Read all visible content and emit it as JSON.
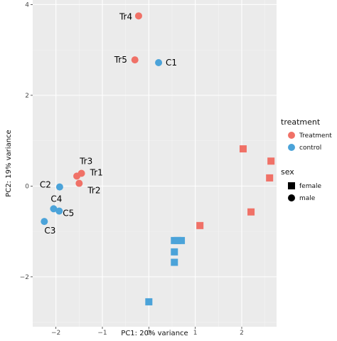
{
  "chart_data": {
    "type": "scatter",
    "title": "",
    "xlabel": "PC1: 20% variance",
    "ylabel": "PC2: 19% variance",
    "xlim": [
      -2.5,
      2.75
    ],
    "ylim": [
      -3.1,
      4.1
    ],
    "x_ticks": [
      -2,
      -1,
      0,
      1,
      2
    ],
    "y_ticks": [
      -2,
      0,
      2,
      4
    ],
    "x_tick_labels": [
      "−2",
      "−1",
      "0",
      "1",
      "2"
    ],
    "y_tick_labels": [
      "−2",
      "0",
      "2",
      "4"
    ],
    "grid": true,
    "colors": {
      "Treatment": "#f07167",
      "control": "#4ba3d9"
    },
    "points": [
      {
        "label": "Tr4",
        "x": -0.22,
        "y": 3.75,
        "treatment": "Treatment",
        "sex": "male"
      },
      {
        "label": "Tr5",
        "x": -0.3,
        "y": 2.78,
        "treatment": "Treatment",
        "sex": "male"
      },
      {
        "label": "C1",
        "x": 0.21,
        "y": 2.72,
        "treatment": "control",
        "sex": "male"
      },
      {
        "label": "Tr3",
        "x": -1.55,
        "y": 0.22,
        "treatment": "Treatment",
        "sex": "male"
      },
      {
        "label": "Tr1",
        "x": -1.45,
        "y": 0.28,
        "treatment": "Treatment",
        "sex": "male"
      },
      {
        "label": "Tr2",
        "x": -1.5,
        "y": 0.06,
        "treatment": "Treatment",
        "sex": "male"
      },
      {
        "label": "C2",
        "x": -1.92,
        "y": -0.02,
        "treatment": "control",
        "sex": "male"
      },
      {
        "label": "C4",
        "x": -2.05,
        "y": -0.5,
        "treatment": "control",
        "sex": "male"
      },
      {
        "label": "C5",
        "x": -1.93,
        "y": -0.55,
        "treatment": "control",
        "sex": "male"
      },
      {
        "label": "C3",
        "x": -2.25,
        "y": -0.78,
        "treatment": "control",
        "sex": "male"
      },
      {
        "label": "",
        "x": 2.03,
        "y": 0.82,
        "treatment": "Treatment",
        "sex": "female"
      },
      {
        "label": "",
        "x": 2.63,
        "y": 0.55,
        "treatment": "Treatment",
        "sex": "female"
      },
      {
        "label": "",
        "x": 2.6,
        "y": 0.18,
        "treatment": "Treatment",
        "sex": "female"
      },
      {
        "label": "",
        "x": 2.2,
        "y": -0.57,
        "treatment": "Treatment",
        "sex": "female"
      },
      {
        "label": "",
        "x": 1.1,
        "y": -0.87,
        "treatment": "Treatment",
        "sex": "female"
      },
      {
        "label": "",
        "x": 0.55,
        "y": -1.2,
        "treatment": "control",
        "sex": "female"
      },
      {
        "label": "",
        "x": 0.62,
        "y": -1.2,
        "treatment": "control",
        "sex": "female"
      },
      {
        "label": "",
        "x": 0.7,
        "y": -1.2,
        "treatment": "control",
        "sex": "female"
      },
      {
        "label": "",
        "x": 0.55,
        "y": -1.45,
        "treatment": "control",
        "sex": "female"
      },
      {
        "label": "",
        "x": 0.55,
        "y": -1.68,
        "treatment": "control",
        "sex": "female"
      },
      {
        "label": "",
        "x": 0.0,
        "y": -2.55,
        "treatment": "control",
        "sex": "female"
      }
    ],
    "legend": {
      "position": "right",
      "treatment": {
        "title": "treatment",
        "entries": [
          "Treatment",
          "control"
        ]
      },
      "sex": {
        "title": "sex",
        "entries": [
          "female",
          "male"
        ]
      }
    }
  }
}
